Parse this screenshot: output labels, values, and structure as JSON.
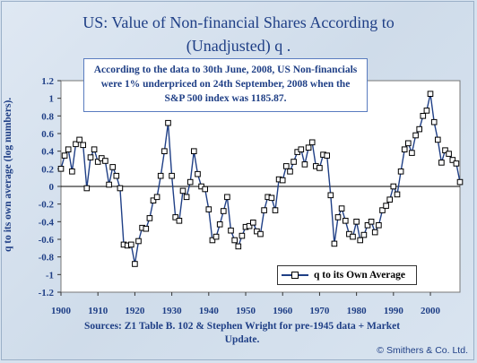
{
  "title_line1": "US: Value of Non-financial Shares According to",
  "title_line2": "(Unadjusted) q .",
  "note": "According to the data to 30th June, 2008, US Non-financials were 1% underpriced on 24th September, 2008 when the S&P 500 index was 1185.87.",
  "source": "Sources: Z1 Table B. 102 & Stephen Wright for pre-1945 data + Market Update.",
  "credit": "© Smithers & Co. Ltd.",
  "colors": {
    "line": "#1f3f86",
    "marker_fill": "#ffffff",
    "plot_bg": "#ffffff",
    "text": "#1f3f86"
  },
  "chart_data": {
    "type": "line",
    "title": "US: Value of Non-financial Shares According to (Unadjusted) q .",
    "ylabel": "q to its own average (log numbers).",
    "xlabel": "",
    "xlim": [
      1900,
      2008
    ],
    "ylim": [
      -1.2,
      1.2
    ],
    "x_ticks": [
      1900,
      1910,
      1920,
      1930,
      1940,
      1950,
      1960,
      1970,
      1980,
      1990,
      2000
    ],
    "y_ticks": [
      -1.2,
      -1.0,
      -0.8,
      -0.6,
      -0.4,
      -0.2,
      0,
      0.2,
      0.4,
      0.6,
      0.8,
      1.0,
      1.2
    ],
    "grid": false,
    "legend_position": "bottom-right",
    "series": [
      {
        "name": "q to its Own Average",
        "x": [
          1900,
          1901,
          1902,
          1903,
          1904,
          1905,
          1906,
          1907,
          1908,
          1909,
          1910,
          1911,
          1912,
          1913,
          1914,
          1915,
          1916,
          1917,
          1918,
          1919,
          1920,
          1921,
          1922,
          1923,
          1924,
          1925,
          1926,
          1927,
          1928,
          1929,
          1930,
          1931,
          1932,
          1933,
          1934,
          1935,
          1936,
          1937,
          1938,
          1939,
          1940,
          1941,
          1942,
          1943,
          1944,
          1945,
          1946,
          1947,
          1948,
          1949,
          1950,
          1951,
          1952,
          1953,
          1954,
          1955,
          1956,
          1957,
          1958,
          1959,
          1960,
          1961,
          1962,
          1963,
          1964,
          1965,
          1966,
          1967,
          1968,
          1969,
          1970,
          1971,
          1972,
          1973,
          1974,
          1975,
          1976,
          1977,
          1978,
          1979,
          1980,
          1981,
          1982,
          1983,
          1984,
          1985,
          1986,
          1987,
          1988,
          1989,
          1990,
          1991,
          1992,
          1993,
          1994,
          1995,
          1996,
          1997,
          1998,
          1999,
          2000,
          2001,
          2002,
          2003,
          2004,
          2005,
          2006,
          2007,
          2008
        ],
        "y": [
          0.2,
          0.35,
          0.42,
          0.17,
          0.48,
          0.53,
          0.47,
          -0.02,
          0.33,
          0.42,
          0.28,
          0.32,
          0.29,
          0.02,
          0.22,
          0.12,
          -0.02,
          -0.66,
          -0.67,
          -0.66,
          -0.88,
          -0.62,
          -0.47,
          -0.48,
          -0.36,
          -0.16,
          -0.12,
          0.12,
          0.4,
          0.72,
          0.12,
          -0.35,
          -0.39,
          -0.05,
          -0.12,
          0.05,
          0.4,
          0.14,
          0.0,
          -0.03,
          -0.26,
          -0.61,
          -0.57,
          -0.43,
          -0.28,
          -0.12,
          -0.5,
          -0.61,
          -0.68,
          -0.56,
          -0.46,
          -0.45,
          -0.41,
          -0.51,
          -0.54,
          -0.27,
          -0.12,
          -0.13,
          -0.27,
          0.08,
          0.07,
          0.23,
          0.17,
          0.28,
          0.39,
          0.42,
          0.25,
          0.44,
          0.5,
          0.23,
          0.21,
          0.36,
          0.35,
          -0.1,
          -0.65,
          -0.35,
          -0.25,
          -0.39,
          -0.54,
          -0.57,
          -0.4,
          -0.61,
          -0.55,
          -0.44,
          -0.4,
          -0.52,
          -0.44,
          -0.27,
          -0.22,
          -0.15,
          0.0,
          -0.09,
          0.17,
          0.42,
          0.49,
          0.38,
          0.58,
          0.65,
          0.8,
          0.86,
          1.05,
          0.73,
          0.53,
          0.27,
          0.41,
          0.37,
          0.3,
          0.26,
          0.05
        ]
      }
    ]
  }
}
